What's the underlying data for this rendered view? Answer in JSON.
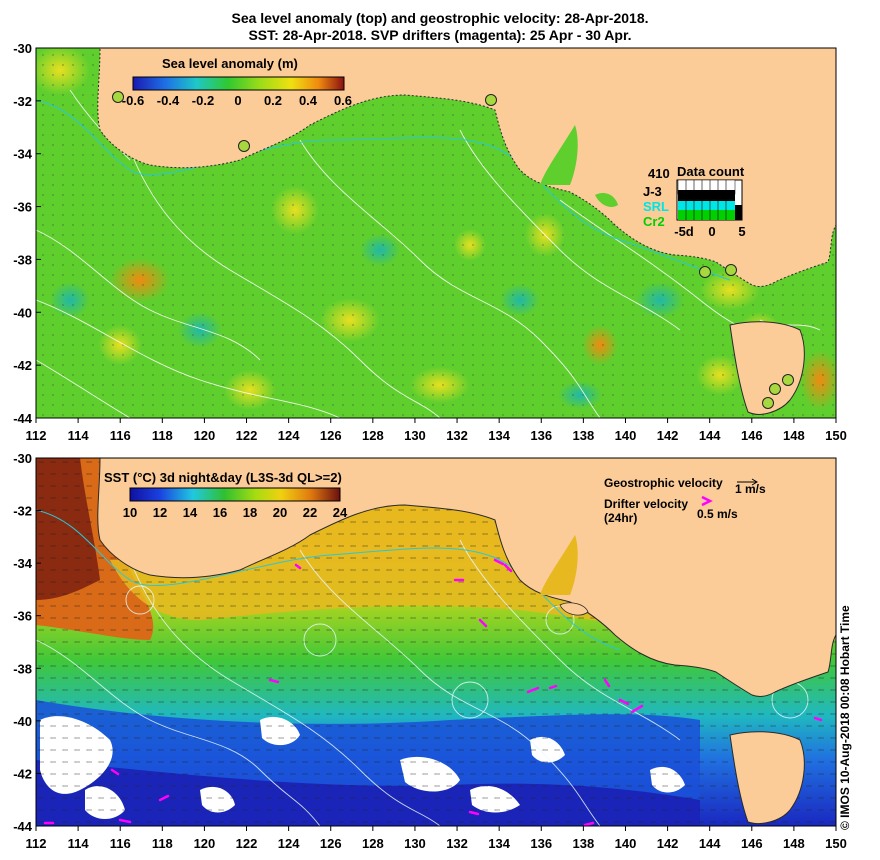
{
  "title": {
    "line1": "Sea level anomaly (top) and geostrophic velocity: 28-Apr-2018.",
    "line2": "SST: 28-Apr-2018. SVP drifters (magenta): 25 Apr - 30 Apr."
  },
  "axes": {
    "x_ticks": [
      "112",
      "114",
      "116",
      "118",
      "120",
      "122",
      "124",
      "126",
      "128",
      "130",
      "132",
      "134",
      "136",
      "138",
      "140",
      "142",
      "144",
      "146",
      "148",
      "150"
    ],
    "y_ticks": [
      "-30",
      "-32",
      "-34",
      "-36",
      "-38",
      "-40",
      "-42",
      "-44"
    ]
  },
  "top_panel": {
    "colorbar_title": "Sea level anomaly (m)",
    "colorbar_ticks": [
      "-0.6",
      "-0.4",
      "-0.2",
      "0",
      "0.2",
      "0.4",
      "0.6"
    ],
    "data_count": {
      "title": "Data count",
      "number": "410",
      "missions": [
        {
          "name": "J-3",
          "color": "#000000"
        },
        {
          "name": "SRL",
          "color": "#00e5e5"
        },
        {
          "name": "Cr2",
          "color": "#00d000"
        }
      ],
      "x_ticks": [
        "-5d",
        "0",
        "5"
      ]
    }
  },
  "bottom_panel": {
    "colorbar_title": "SST (°C) 3d night&day (L3S-3d QL>=2)",
    "colorbar_ticks": [
      "10",
      "12",
      "14",
      "16",
      "18",
      "20",
      "22",
      "24"
    ],
    "legend": {
      "geo_label": "Geostrophic velocity",
      "geo_scale": "1 m/s",
      "drifter_label": "Drifter velocity",
      "drifter_sub": "(24hr)",
      "drifter_scale": "0.5 m/s"
    }
  },
  "credit": "© IMOS 10-Aug-2018 00:08 Hobart Time",
  "colors": {
    "land": "#fbcb98",
    "ocean_green": "#5fcf2e",
    "drifter": "#ff00ff"
  }
}
